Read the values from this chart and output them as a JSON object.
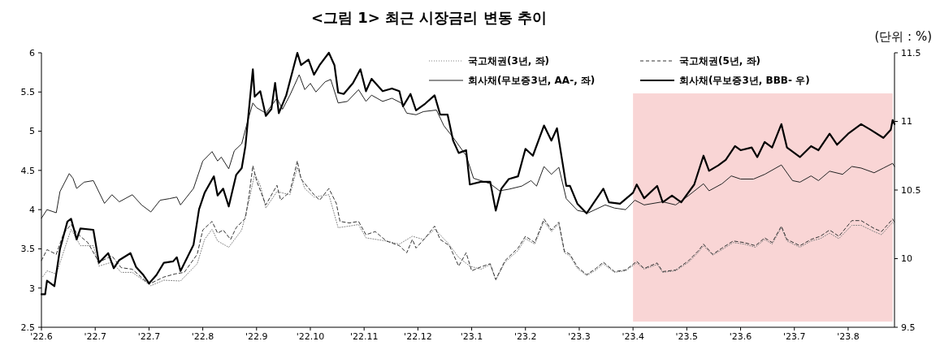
{
  "chart_data": {
    "type": "line",
    "title": "<그림 1> 최근 시장금리 변동 추이",
    "annotations": [
      "(단위 : %)"
    ],
    "xlim": [
      "2022-06-02",
      "2023-09-05"
    ],
    "xticks": [
      {
        "value": "2022-06-02",
        "label": "'22.6"
      },
      {
        "value": "2022-07-01",
        "label": "'22.7"
      },
      {
        "value": "2022-07-30",
        "label": "'22.7"
      },
      {
        "value": "2022-08-28",
        "label": "'22.8"
      },
      {
        "value": "2022-09-26",
        "label": "'22.9"
      },
      {
        "value": "2022-10-25",
        "label": "'22.10"
      },
      {
        "value": "2022-11-23",
        "label": "'22.11"
      },
      {
        "value": "2022-12-22",
        "label": "'22.12"
      },
      {
        "value": "2023-01-20",
        "label": "'23.1"
      },
      {
        "value": "2023-02-18",
        "label": "'23.2"
      },
      {
        "value": "2023-03-19",
        "label": "'23.3"
      },
      {
        "value": "2023-04-17",
        "label": "'23.4"
      },
      {
        "value": "2023-05-16",
        "label": "'23.5"
      },
      {
        "value": "2023-06-14",
        "label": "'23.6"
      },
      {
        "value": "2023-07-13",
        "label": "'23.7"
      },
      {
        "value": "2023-08-11",
        "label": "'23.8"
      }
    ],
    "ylim": [
      2.5,
      6
    ],
    "yticks": [
      2.5,
      3,
      3.5,
      4,
      4.5,
      5,
      5.5,
      6
    ],
    "y2lim": [
      9.5,
      11.5
    ],
    "y2ticks": [
      9.5,
      10,
      10.5,
      11,
      11.5
    ],
    "grid": false,
    "legend": "top",
    "marker": "none",
    "bands": [
      {
        "axis": "x",
        "from": "2023-04-17",
        "to": "2023-09-04",
        "color": "#f9d5d5"
      }
    ],
    "series": [
      {
        "name": "국고채권(3년, 좌)",
        "color": "#808080",
        "line_style": "dotted",
        "x": [
          "2022-06-02",
          "2022-06-05",
          "2022-06-10",
          "2022-06-18",
          "2022-06-23",
          "2022-06-30",
          "2022-07-03",
          "2022-07-10",
          "2022-07-15",
          "2022-07-21",
          "2022-07-31",
          "2022-08-07",
          "2022-08-16",
          "2022-08-25",
          "2022-08-29",
          "2022-09-02",
          "2022-09-05",
          "2022-09-11",
          "2022-09-18",
          "2022-09-22",
          "2022-09-25",
          "2022-09-28",
          "2022-10-01",
          "2022-10-07",
          "2022-10-14",
          "2022-10-18",
          "2022-10-22",
          "2022-10-27",
          "2022-11-04",
          "2022-11-09",
          "2022-11-15",
          "2022-11-20",
          "2022-11-24",
          "2022-12-05",
          "2022-12-12",
          "2022-12-19",
          "2022-12-25",
          "2022-12-31",
          "2023-01-07",
          "2023-01-13",
          "2023-01-19",
          "2023-01-25",
          "2023-01-30",
          "2023-02-02",
          "2023-02-07",
          "2023-02-14",
          "2023-02-18",
          "2023-02-23",
          "2023-02-28",
          "2023-03-04",
          "2023-03-08",
          "2023-03-11",
          "2023-03-14",
          "2023-03-18",
          "2023-03-23",
          "2023-03-28",
          "2023-04-01",
          "2023-04-07",
          "2023-04-13",
          "2023-04-19",
          "2023-04-23",
          "2023-04-30",
          "2023-05-03",
          "2023-05-10",
          "2023-05-17",
          "2023-05-22",
          "2023-05-25",
          "2023-05-30",
          "2023-06-04",
          "2023-06-10",
          "2023-06-16",
          "2023-06-22",
          "2023-06-27",
          "2023-07-01",
          "2023-07-06",
          "2023-07-09",
          "2023-07-16",
          "2023-07-22",
          "2023-07-27",
          "2023-08-01",
          "2023-08-06",
          "2023-08-13",
          "2023-08-18",
          "2023-08-25",
          "2023-08-29",
          "2023-09-04",
          "2023-09-05"
        ],
        "values": [
          3.12,
          3.22,
          3.18,
          3.75,
          3.54,
          3.54,
          3.28,
          3.33,
          3.2,
          3.2,
          3.03,
          3.1,
          3.09,
          3.31,
          3.62,
          3.75,
          3.6,
          3.52,
          3.74,
          4.12,
          4.46,
          4.31,
          4.02,
          4.23,
          4.19,
          4.54,
          4.27,
          4.16,
          4.19,
          3.77,
          3.79,
          3.81,
          3.64,
          3.6,
          3.56,
          3.66,
          3.62,
          3.75,
          3.58,
          3.39,
          3.28,
          3.24,
          3.3,
          3.1,
          3.33,
          3.48,
          3.63,
          3.56,
          3.85,
          3.72,
          3.82,
          3.45,
          3.41,
          3.25,
          3.16,
          3.23,
          3.31,
          3.2,
          3.22,
          3.32,
          3.24,
          3.3,
          3.2,
          3.22,
          3.33,
          3.45,
          3.54,
          3.42,
          3.49,
          3.58,
          3.56,
          3.52,
          3.62,
          3.56,
          3.77,
          3.6,
          3.52,
          3.6,
          3.63,
          3.7,
          3.63,
          3.8,
          3.8,
          3.72,
          3.68,
          3.84,
          3.8
        ]
      },
      {
        "name": "국고채권(5년, 좌)",
        "color": "#333333",
        "line_style": "dashed",
        "x": [
          "2022-06-02",
          "2022-06-05",
          "2022-06-10",
          "2022-06-14",
          "2022-06-18",
          "2022-06-21",
          "2022-06-27",
          "2022-07-03",
          "2022-07-10",
          "2022-07-15",
          "2022-07-21",
          "2022-07-30",
          "2022-08-07",
          "2022-08-13",
          "2022-08-18",
          "2022-08-25",
          "2022-08-28",
          "2022-09-02",
          "2022-09-05",
          "2022-09-08",
          "2022-09-12",
          "2022-09-15",
          "2022-09-20",
          "2022-09-22",
          "2022-09-24",
          "2022-09-26",
          "2022-10-01",
          "2022-10-07",
          "2022-10-09",
          "2022-10-14",
          "2022-10-18",
          "2022-10-20",
          "2022-10-27",
          "2022-10-30",
          "2022-11-04",
          "2022-11-08",
          "2022-11-10",
          "2022-11-15",
          "2022-11-20",
          "2022-11-24",
          "2022-11-29",
          "2022-12-05",
          "2022-12-12",
          "2022-12-16",
          "2022-12-19",
          "2022-12-21",
          "2022-12-26",
          "2022-12-31",
          "2023-01-03",
          "2023-01-08",
          "2023-01-13",
          "2023-01-17",
          "2023-01-20",
          "2023-01-25",
          "2023-01-30",
          "2023-02-02",
          "2023-02-07",
          "2023-02-14",
          "2023-02-18",
          "2023-02-23",
          "2023-02-28",
          "2023-03-04",
          "2023-03-08",
          "2023-03-11",
          "2023-03-14",
          "2023-03-18",
          "2023-03-23",
          "2023-03-28",
          "2023-04-01",
          "2023-04-07",
          "2023-04-13",
          "2023-04-19",
          "2023-04-23",
          "2023-04-30",
          "2023-05-03",
          "2023-05-10",
          "2023-05-17",
          "2023-05-22",
          "2023-05-25",
          "2023-05-30",
          "2023-06-04",
          "2023-06-10",
          "2023-06-16",
          "2023-06-22",
          "2023-06-27",
          "2023-07-01",
          "2023-07-06",
          "2023-07-09",
          "2023-07-16",
          "2023-07-22",
          "2023-07-27",
          "2023-08-01",
          "2023-08-06",
          "2023-08-13",
          "2023-08-18",
          "2023-08-25",
          "2023-08-29",
          "2023-09-04",
          "2023-09-05"
        ],
        "values": [
          3.35,
          3.49,
          3.43,
          3.7,
          3.81,
          3.7,
          3.58,
          3.33,
          3.41,
          3.26,
          3.24,
          3.05,
          3.14,
          3.18,
          3.2,
          3.43,
          3.74,
          3.85,
          3.7,
          3.74,
          3.62,
          3.77,
          3.89,
          4.19,
          4.56,
          4.37,
          4.06,
          4.31,
          4.12,
          4.23,
          4.62,
          4.39,
          4.19,
          4.12,
          4.27,
          4.08,
          3.85,
          3.83,
          3.85,
          3.68,
          3.72,
          3.6,
          3.54,
          3.45,
          3.62,
          3.51,
          3.64,
          3.79,
          3.62,
          3.54,
          3.28,
          3.45,
          3.22,
          3.27,
          3.31,
          3.11,
          3.35,
          3.51,
          3.66,
          3.58,
          3.88,
          3.74,
          3.84,
          3.47,
          3.43,
          3.27,
          3.17,
          3.25,
          3.33,
          3.21,
          3.23,
          3.34,
          3.25,
          3.32,
          3.21,
          3.23,
          3.35,
          3.47,
          3.56,
          3.43,
          3.51,
          3.6,
          3.58,
          3.54,
          3.64,
          3.58,
          3.79,
          3.62,
          3.54,
          3.62,
          3.66,
          3.74,
          3.66,
          3.86,
          3.86,
          3.76,
          3.72,
          3.88,
          3.84
        ]
      },
      {
        "name": "회사채(무보증3년, AA-, 좌)",
        "color": "#222222",
        "line_style": "solid",
        "x": [
          "2022-06-02",
          "2022-06-05",
          "2022-06-10",
          "2022-06-12",
          "2022-06-17",
          "2022-06-19",
          "2022-06-21",
          "2022-06-25",
          "2022-06-30",
          "2022-07-06",
          "2022-07-10",
          "2022-07-14",
          "2022-07-21",
          "2022-07-26",
          "2022-07-31",
          "2022-08-05",
          "2022-08-10",
          "2022-08-14",
          "2022-08-16",
          "2022-08-23",
          "2022-08-28",
          "2022-09-02",
          "2022-09-05",
          "2022-09-07",
          "2022-09-11",
          "2022-09-14",
          "2022-09-18",
          "2022-09-21",
          "2022-09-24",
          "2022-09-26",
          "2022-10-01",
          "2022-10-07",
          "2022-10-10",
          "2022-10-14",
          "2022-10-19",
          "2022-10-22",
          "2022-10-25",
          "2022-10-28",
          "2022-11-02",
          "2022-11-05",
          "2022-11-09",
          "2022-11-14",
          "2022-11-20",
          "2022-11-24",
          "2022-11-27",
          "2022-12-03",
          "2022-12-08",
          "2022-12-13",
          "2022-12-16",
          "2022-12-21",
          "2022-12-25",
          "2023-01-01",
          "2023-01-05",
          "2023-01-10",
          "2023-01-17",
          "2023-01-21",
          "2023-01-30",
          "2023-02-04",
          "2023-02-09",
          "2023-02-16",
          "2023-02-21",
          "2023-02-24",
          "2023-02-28",
          "2023-03-04",
          "2023-03-08",
          "2023-03-12",
          "2023-03-18",
          "2023-03-24",
          "2023-04-02",
          "2023-04-07",
          "2023-04-13",
          "2023-04-18",
          "2023-04-23",
          "2023-05-03",
          "2023-05-10",
          "2023-05-17",
          "2023-05-25",
          "2023-05-28",
          "2023-06-04",
          "2023-06-09",
          "2023-06-14",
          "2023-06-21",
          "2023-06-27",
          "2023-07-06",
          "2023-07-12",
          "2023-07-16",
          "2023-07-22",
          "2023-07-26",
          "2023-08-01",
          "2023-08-08",
          "2023-08-13",
          "2023-08-18",
          "2023-08-25",
          "2023-08-30",
          "2023-09-04",
          "2023-09-05"
        ],
        "values": [
          3.89,
          4,
          3.96,
          4.23,
          4.46,
          4.4,
          4.27,
          4.35,
          4.37,
          4.08,
          4.19,
          4.1,
          4.19,
          4.06,
          3.97,
          4.12,
          4.14,
          4.16,
          4.06,
          4.27,
          4.62,
          4.74,
          4.62,
          4.67,
          4.52,
          4.75,
          4.84,
          5.11,
          5.36,
          5.3,
          5.23,
          5.42,
          5.28,
          5.46,
          5.72,
          5.53,
          5.61,
          5.5,
          5.63,
          5.66,
          5.36,
          5.38,
          5.53,
          5.38,
          5.46,
          5.38,
          5.42,
          5.36,
          5.23,
          5.21,
          5.25,
          5.27,
          5.07,
          4.92,
          4.69,
          4.4,
          4.33,
          4.24,
          4.26,
          4.3,
          4.37,
          4.3,
          4.55,
          4.45,
          4.54,
          4.14,
          3.99,
          3.96,
          4.06,
          4.02,
          4,
          4.12,
          4.06,
          4.1,
          4.06,
          4.18,
          4.33,
          4.24,
          4.33,
          4.43,
          4.39,
          4.39,
          4.45,
          4.57,
          4.37,
          4.35,
          4.43,
          4.37,
          4.49,
          4.45,
          4.55,
          4.53,
          4.47,
          4.53,
          4.59,
          4.55
        ]
      },
      {
        "name": "회사채(무보증3년, BBB- 우)",
        "color": "#000000",
        "line_style": "solid",
        "axis": "y2",
        "x": [
          "2022-06-02",
          "2022-06-04",
          "2022-06-05",
          "2022-06-09",
          "2022-06-12",
          "2022-06-16",
          "2022-06-18",
          "2022-06-21",
          "2022-06-23",
          "2022-06-30",
          "2022-07-03",
          "2022-07-08",
          "2022-07-11",
          "2022-07-14",
          "2022-07-20",
          "2022-07-23",
          "2022-07-27",
          "2022-07-30",
          "2022-08-03",
          "2022-08-07",
          "2022-08-12",
          "2022-08-14",
          "2022-08-16",
          "2022-08-23",
          "2022-08-26",
          "2022-08-29",
          "2022-09-03",
          "2022-09-05",
          "2022-09-08",
          "2022-09-11",
          "2022-09-15",
          "2022-09-18",
          "2022-09-20",
          "2022-09-24",
          "2022-09-25",
          "2022-09-28",
          "2022-10-01",
          "2022-10-04",
          "2022-10-06",
          "2022-10-08",
          "2022-10-12",
          "2022-10-18",
          "2022-10-20",
          "2022-10-24",
          "2022-10-27",
          "2022-10-30",
          "2022-11-04",
          "2022-11-07",
          "2022-11-09",
          "2022-11-12",
          "2022-11-17",
          "2022-11-21",
          "2022-11-24",
          "2022-11-27",
          "2022-12-03",
          "2022-12-08",
          "2022-12-12",
          "2022-12-14",
          "2022-12-18",
          "2022-12-21",
          "2022-12-26",
          "2022-12-31",
          "2023-01-03",
          "2023-01-07",
          "2023-01-10",
          "2023-01-13",
          "2023-01-17",
          "2023-01-19",
          "2023-01-25",
          "2023-01-30",
          "2023-02-02",
          "2023-02-05",
          "2023-02-09",
          "2023-02-14",
          "2023-02-18",
          "2023-02-22",
          "2023-02-28",
          "2023-03-04",
          "2023-03-07",
          "2023-03-12",
          "2023-03-14",
          "2023-03-18",
          "2023-03-23",
          "2023-03-27",
          "2023-04-01",
          "2023-04-04",
          "2023-04-10",
          "2023-04-17",
          "2023-04-19",
          "2023-04-23",
          "2023-04-30",
          "2023-05-03",
          "2023-05-08",
          "2023-05-13",
          "2023-05-20",
          "2023-05-25",
          "2023-05-28",
          "2023-06-02",
          "2023-06-06",
          "2023-06-11",
          "2023-06-14",
          "2023-06-20",
          "2023-06-23",
          "2023-06-27",
          "2023-07-01",
          "2023-07-06",
          "2023-07-09",
          "2023-07-16",
          "2023-07-22",
          "2023-07-26",
          "2023-08-01",
          "2023-08-05",
          "2023-08-11",
          "2023-08-18",
          "2023-08-23",
          "2023-08-30",
          "2023-09-03",
          "2023-09-04",
          "2023-09-05"
        ],
        "values": [
          9.74,
          9.74,
          9.84,
          9.8,
          10.07,
          10.27,
          10.29,
          10.14,
          10.22,
          10.21,
          9.97,
          10.04,
          9.93,
          9.99,
          10.04,
          9.94,
          9.88,
          9.82,
          9.88,
          9.97,
          9.98,
          10.01,
          9.91,
          10.1,
          10.36,
          10.48,
          10.6,
          10.46,
          10.51,
          10.38,
          10.61,
          10.66,
          10.82,
          11.38,
          11.18,
          11.22,
          11.04,
          11.09,
          11.28,
          11.06,
          11.19,
          11.5,
          11.41,
          11.45,
          11.34,
          11.41,
          11.5,
          11.41,
          11.21,
          11.2,
          11.28,
          11.38,
          11.22,
          11.31,
          11.22,
          11.24,
          11.22,
          11.11,
          11.2,
          11.08,
          11.13,
          11.19,
          11.05,
          11.05,
          10.86,
          10.77,
          10.79,
          10.54,
          10.56,
          10.56,
          10.35,
          10.51,
          10.58,
          10.6,
          10.8,
          10.75,
          10.97,
          10.86,
          10.95,
          10.53,
          10.53,
          10.4,
          10.33,
          10.41,
          10.51,
          10.41,
          10.4,
          10.48,
          10.54,
          10.44,
          10.53,
          10.41,
          10.46,
          10.41,
          10.54,
          10.75,
          10.64,
          10.68,
          10.72,
          10.82,
          10.79,
          10.81,
          10.74,
          10.85,
          10.81,
          10.98,
          10.81,
          10.74,
          10.82,
          10.79,
          10.91,
          10.83,
          10.91,
          10.98,
          10.94,
          10.88,
          10.94,
          11.01,
          10.98
        ]
      }
    ]
  }
}
